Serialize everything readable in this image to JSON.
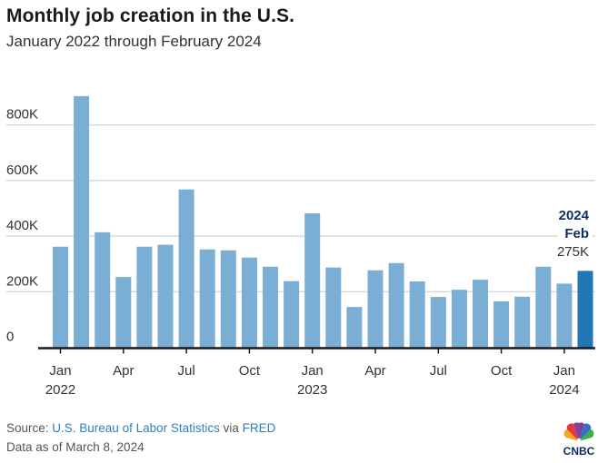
{
  "header": {
    "title": "Monthly job creation in the U.S.",
    "subtitle": "January 2022 through February 2024"
  },
  "footer": {
    "source_prefix": "Source: ",
    "source_bls": "U.S. Bureau of Labor Statistics",
    "source_via": " via ",
    "source_fred": "FRED",
    "data_as_of": "Data as of March 8, 2024"
  },
  "logo": {
    "name": "CNBC",
    "text": "CNBC"
  },
  "colors": {
    "bar": "#7aaed4",
    "bar_highlight": "#2176b4",
    "annotation": "#0d2f5e",
    "grid": "#d0d0d0",
    "axis": "#1a1a1a",
    "link": "#2f7fc1"
  },
  "chart_data": {
    "type": "bar",
    "title": "Monthly job creation in the U.S.",
    "subtitle": "January 2022 through February 2024",
    "xlabel": "",
    "ylabel": "",
    "ylim": [
      0,
      950
    ],
    "grid": true,
    "categories": [
      "Jan 2022",
      "Feb 2022",
      "Mar 2022",
      "Apr 2022",
      "May 2022",
      "Jun 2022",
      "Jul 2022",
      "Aug 2022",
      "Sep 2022",
      "Oct 2022",
      "Nov 2022",
      "Dec 2022",
      "Jan 2023",
      "Feb 2023",
      "Mar 2023",
      "Apr 2023",
      "May 2023",
      "Jun 2023",
      "Jul 2023",
      "Aug 2023",
      "Sep 2023",
      "Oct 2023",
      "Nov 2023",
      "Dec 2023",
      "Jan 2024",
      "Feb 2024"
    ],
    "values": [
      362,
      904,
      414,
      253,
      362,
      369,
      568,
      352,
      349,
      323,
      290,
      238,
      482,
      287,
      145,
      277,
      303,
      237,
      181,
      207,
      243,
      165,
      182,
      290,
      229,
      275
    ],
    "units": "thousands of jobs",
    "highlight_index": 25,
    "y_ticks": [
      {
        "value": 0,
        "label": "0"
      },
      {
        "value": 200,
        "label": "200K"
      },
      {
        "value": 400,
        "label": "400K"
      },
      {
        "value": 600,
        "label": "600K"
      },
      {
        "value": 800,
        "label": "800K"
      }
    ],
    "x_ticks": [
      {
        "index": 0,
        "label": "Jan",
        "sublabel": "2022"
      },
      {
        "index": 3,
        "label": "Apr",
        "sublabel": ""
      },
      {
        "index": 6,
        "label": "Jul",
        "sublabel": ""
      },
      {
        "index": 9,
        "label": "Oct",
        "sublabel": ""
      },
      {
        "index": 12,
        "label": "Jan",
        "sublabel": "2023"
      },
      {
        "index": 15,
        "label": "Apr",
        "sublabel": ""
      },
      {
        "index": 18,
        "label": "Jul",
        "sublabel": ""
      },
      {
        "index": 21,
        "label": "Oct",
        "sublabel": ""
      },
      {
        "index": 24,
        "label": "Jan",
        "sublabel": "2024"
      }
    ],
    "annotation": {
      "year": "2024",
      "month": "Feb",
      "value_label": "275K"
    }
  }
}
